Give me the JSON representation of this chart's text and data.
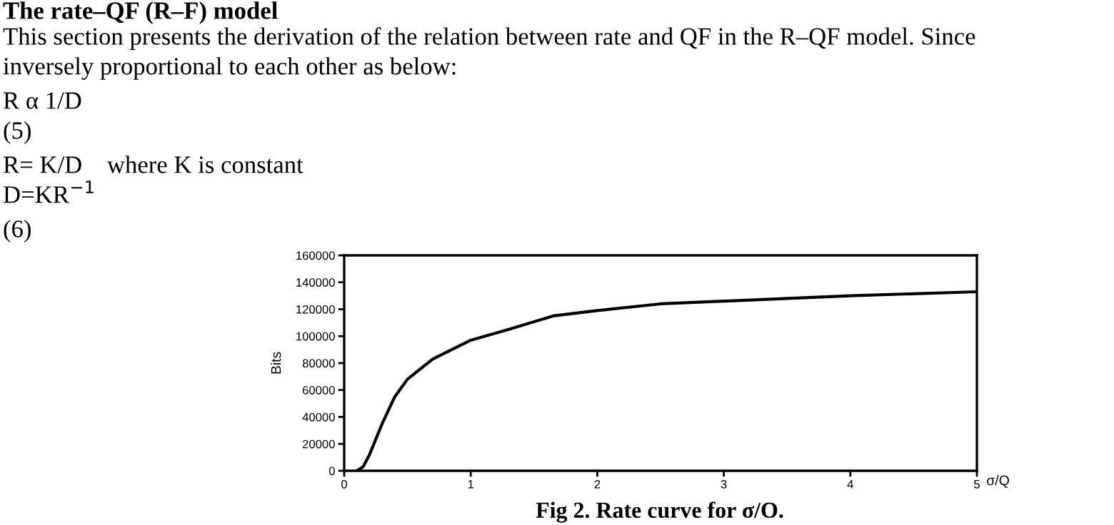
{
  "chart_data": {
    "type": "line",
    "ylabel": "Bits",
    "xlabel": "σ/Q",
    "annotations": [
      "The rate–QF (R–F) model",
      "This section presents the derivation of the relation between rate and QF in the R–QF model. Since",
      "inversely proportional to each other as below:",
      "R α 1/D",
      "(5)",
      "R= K/D    where K is constant",
      "D=KR$^{−1}$",
      "(6)",
      "Fig 2. Rate curve for σ/O."
    ],
    "x": [
      0.1,
      0.15,
      0.2,
      0.3,
      0.4,
      0.5,
      0.7,
      1.0,
      1.3,
      1.65,
      2.0,
      2.5,
      3.0,
      4.0,
      5.0
    ],
    "series": [
      {
        "color": "#000000",
        "values": [
          0,
          3000,
          12000,
          35000,
          55000,
          68000,
          83000,
          97000,
          105000,
          115000,
          119000,
          124000,
          126000,
          130000,
          133000
        ]
      }
    ],
    "xlim": [
      0,
      5
    ],
    "xticks": [
      0,
      1,
      2,
      3,
      4,
      5
    ],
    "ylim": [
      0,
      160000
    ],
    "yticks": [
      0,
      20000,
      40000,
      60000,
      80000,
      100000,
      120000,
      140000,
      160000
    ],
    "grid": false,
    "legend": false,
    "marker": "none",
    "line_style": "solid"
  }
}
